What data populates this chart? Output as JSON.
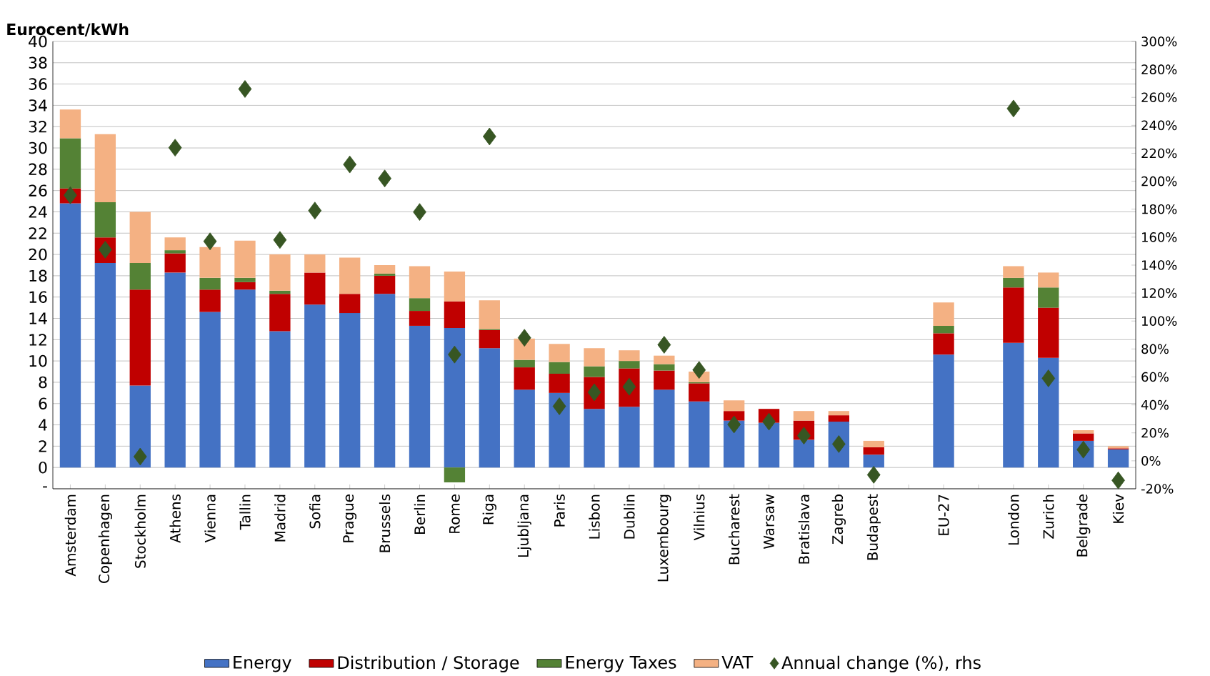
{
  "chart_data": {
    "type": "bar",
    "stacked": true,
    "grid": "y",
    "legend": "bottom",
    "ylabel": "Eurocent/kWh",
    "categories": [
      "Amsterdam",
      "Copenhagen",
      "Stockholm",
      "Athens",
      "Vienna",
      "Tallin",
      "Madrid",
      "Sofia",
      "Prague",
      "Brussels",
      "Berlin",
      "Rome",
      "Riga",
      "Ljubljana",
      "Paris",
      "Lisbon",
      "Dublin",
      "Luxembourg",
      "Vilnius",
      "Bucharest",
      "Warsaw",
      "Bratislava",
      "Zagreb",
      "Budapest",
      null,
      "EU-27",
      null,
      "London",
      "Zurich",
      "Belgrade",
      "Kiev"
    ],
    "ylim": [
      -2,
      40
    ],
    "yticks": [
      {
        "value": -2,
        "label": "-"
      },
      0,
      2,
      4,
      6,
      8,
      10,
      12,
      14,
      16,
      18,
      20,
      22,
      24,
      26,
      28,
      30,
      32,
      34,
      36,
      38,
      40
    ],
    "y2lim": [
      -20,
      300
    ],
    "y2ticks": [
      {
        "value": -20,
        "label": "-20%"
      },
      {
        "value": 0,
        "label": "0%"
      },
      {
        "value": 20,
        "label": "20%"
      },
      {
        "value": 40,
        "label": "40%"
      },
      {
        "value": 60,
        "label": "60%"
      },
      {
        "value": 80,
        "label": "80%"
      },
      {
        "value": 100,
        "label": "100%"
      },
      {
        "value": 120,
        "label": "120%"
      },
      {
        "value": 140,
        "label": "140%"
      },
      {
        "value": 160,
        "label": "160%"
      },
      {
        "value": 180,
        "label": "180%"
      },
      {
        "value": 200,
        "label": "200%"
      },
      {
        "value": 220,
        "label": "220%"
      },
      {
        "value": 240,
        "label": "240%"
      },
      {
        "value": 260,
        "label": "260%"
      },
      {
        "value": 280,
        "label": "280%"
      },
      {
        "value": 300,
        "label": "300%"
      }
    ],
    "series": [
      {
        "name": "Energy",
        "color": "#4472c4",
        "values": [
          24.8,
          19.2,
          7.7,
          18.3,
          14.6,
          16.7,
          12.8,
          15.3,
          14.5,
          16.3,
          13.3,
          13.1,
          11.2,
          7.3,
          7.0,
          5.5,
          5.7,
          7.3,
          6.2,
          4.4,
          4.2,
          2.6,
          4.3,
          1.2,
          null,
          10.6,
          null,
          11.7,
          10.3,
          2.5,
          1.7
        ]
      },
      {
        "name": "Distribution / Storage",
        "color": "#c00000",
        "values": [
          1.4,
          2.4,
          9.0,
          1.8,
          2.1,
          0.7,
          3.5,
          3.0,
          1.8,
          1.7,
          1.4,
          2.5,
          1.7,
          2.1,
          1.8,
          3.0,
          3.6,
          1.8,
          1.7,
          0.9,
          1.3,
          1.8,
          0.6,
          0.7,
          null,
          2.0,
          null,
          5.2,
          4.7,
          0.7,
          0.1
        ]
      },
      {
        "name": "Energy Taxes",
        "color": "#548235",
        "values": [
          4.7,
          3.3,
          2.5,
          0.3,
          1.1,
          0.4,
          0.3,
          0,
          0,
          0.2,
          1.2,
          -1.4,
          0.1,
          0.7,
          1.1,
          1.0,
          0.7,
          0.6,
          0.1,
          0,
          0,
          0,
          0,
          0,
          null,
          0.7,
          null,
          0.9,
          1.9,
          0,
          0
        ]
      },
      {
        "name": "VAT",
        "color": "#f4b183",
        "values": [
          2.7,
          6.4,
          4.8,
          1.2,
          2.9,
          3.5,
          3.4,
          1.7,
          3.4,
          0.8,
          3.0,
          2.8,
          2.7,
          2.0,
          1.7,
          1.7,
          1.0,
          0.8,
          1.0,
          1.0,
          0,
          0.9,
          0.4,
          0.6,
          null,
          2.2,
          null,
          1.1,
          1.4,
          0.3,
          0.2
        ]
      },
      {
        "name": "Annual change (%), rhs",
        "type": "scatter",
        "axis": "y2",
        "marker": "diamond",
        "color": "#375623",
        "values": [
          190,
          151,
          3,
          224,
          157,
          266,
          158,
          179,
          212,
          202,
          178,
          76,
          232,
          88,
          39,
          49,
          53,
          83,
          65,
          26,
          28,
          18,
          12,
          -10,
          null,
          null,
          null,
          252,
          59,
          8,
          -14
        ]
      }
    ]
  }
}
